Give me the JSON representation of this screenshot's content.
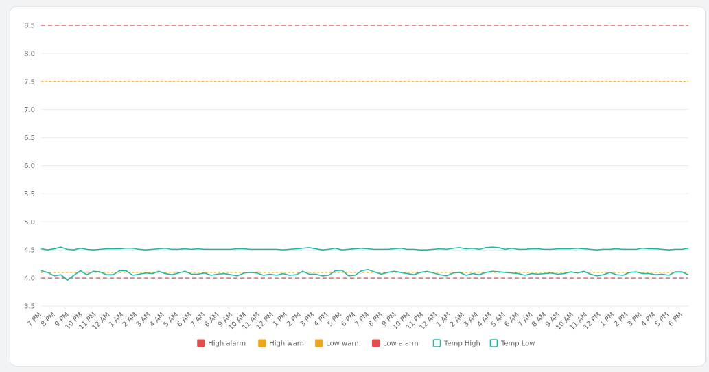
{
  "chart_data": {
    "type": "line",
    "ylim": [
      3.5,
      8.5
    ],
    "yticks": [
      "3.5",
      "4.0",
      "4.5",
      "5.0",
      "5.5",
      "6.0",
      "6.5",
      "7.0",
      "7.5",
      "8.0",
      "8.5"
    ],
    "x_labels": [
      "7 PM",
      "8 PM",
      "9 PM",
      "10 PM",
      "11 PM",
      "12 AM",
      "1 AM",
      "2 AM",
      "3 AM",
      "4 AM",
      "5 AM",
      "6 AM",
      "7 AM",
      "8 AM",
      "9 AM",
      "10 AM",
      "11 AM",
      "12 PM",
      "1 PM",
      "2 PM",
      "3 PM",
      "4 PM",
      "5 PM",
      "6 PM",
      "7 PM",
      "8 PM",
      "9 PM",
      "10 PM",
      "11 PM",
      "12 AM",
      "1 AM",
      "2 AM",
      "3 AM",
      "4 AM",
      "5 AM",
      "6 AM",
      "7 AM",
      "8 AM",
      "9 AM",
      "10 AM",
      "11 AM",
      "12 PM",
      "1 PM",
      "2 PM",
      "3 PM",
      "4 PM",
      "5 PM",
      "6 PM"
    ],
    "grid": true,
    "legend_position": "bottom",
    "thresholds": [
      {
        "name": "High alarm",
        "value": 8.5,
        "color": "#e94b4b",
        "dash": "long"
      },
      {
        "name": "High warn",
        "value": 7.5,
        "color": "#f0a516",
        "dash": "short"
      },
      {
        "name": "Low  warn",
        "value": 4.1,
        "color": "#f0a516",
        "dash": "short"
      },
      {
        "name": "Low  alarm",
        "value": 4.0,
        "color": "#e94b4b",
        "dash": "long"
      }
    ],
    "series": [
      {
        "name": "Temp High",
        "color": "#1fb8a6",
        "values": [
          4.52,
          4.5,
          4.52,
          4.55,
          4.51,
          4.5,
          4.53,
          4.51,
          4.5,
          4.51,
          4.52,
          4.52,
          4.52,
          4.53,
          4.53,
          4.51,
          4.5,
          4.51,
          4.52,
          4.53,
          4.51,
          4.51,
          4.52,
          4.51,
          4.52,
          4.51,
          4.51,
          4.51,
          4.51,
          4.51,
          4.52,
          4.52,
          4.51,
          4.51,
          4.51,
          4.51,
          4.51,
          4.5,
          4.51,
          4.52,
          4.53,
          4.54,
          4.52,
          4.5,
          4.51,
          4.53,
          4.5,
          4.51,
          4.52,
          4.53,
          4.52,
          4.51,
          4.51,
          4.51,
          4.52,
          4.53,
          4.51,
          4.51,
          4.5,
          4.5,
          4.51,
          4.52,
          4.51,
          4.53,
          4.54,
          4.52,
          4.53,
          4.51,
          4.54,
          4.55,
          4.54,
          4.51,
          4.53,
          4.51,
          4.51,
          4.52,
          4.52,
          4.51,
          4.51,
          4.52,
          4.52,
          4.52,
          4.53,
          4.52,
          4.51,
          4.5,
          4.51,
          4.51,
          4.52,
          4.51,
          4.51,
          4.51,
          4.53,
          4.52,
          4.52,
          4.51,
          4.5,
          4.51,
          4.51,
          4.53
        ]
      },
      {
        "name": "Temp Low",
        "color": "#1fb8a6",
        "values": [
          4.13,
          4.1,
          4.04,
          4.06,
          3.96,
          4.05,
          4.13,
          4.06,
          4.12,
          4.11,
          4.06,
          4.06,
          4.13,
          4.13,
          4.05,
          4.07,
          4.09,
          4.08,
          4.12,
          4.08,
          4.06,
          4.09,
          4.12,
          4.07,
          4.07,
          4.09,
          4.05,
          4.07,
          4.08,
          4.06,
          4.04,
          4.09,
          4.1,
          4.09,
          4.05,
          4.07,
          4.05,
          4.08,
          4.05,
          4.06,
          4.12,
          4.07,
          4.07,
          4.04,
          4.05,
          4.13,
          4.14,
          4.04,
          4.05,
          4.13,
          4.15,
          4.11,
          4.07,
          4.1,
          4.12,
          4.1,
          4.08,
          4.06,
          4.1,
          4.12,
          4.09,
          4.06,
          4.04,
          4.09,
          4.1,
          4.05,
          4.08,
          4.06,
          4.1,
          4.12,
          4.11,
          4.1,
          4.09,
          4.08,
          4.05,
          4.08,
          4.07,
          4.08,
          4.09,
          4.07,
          4.08,
          4.11,
          4.09,
          4.12,
          4.07,
          4.04,
          4.06,
          4.1,
          4.06,
          4.05,
          4.1,
          4.11,
          4.08,
          4.08,
          4.06,
          4.07,
          4.05,
          4.11,
          4.11,
          4.06
        ]
      }
    ],
    "legend": [
      {
        "label": "High alarm",
        "color": "#e94b4b",
        "style": "filled"
      },
      {
        "label": "High warn",
        "color": "#f0a516",
        "style": "filled"
      },
      {
        "label": "Low  warn",
        "color": "#f0a516",
        "style": "filled"
      },
      {
        "label": "Low  alarm",
        "color": "#e94b4b",
        "style": "filled"
      },
      {
        "label": "Temp High",
        "color": "#1fb8a6",
        "style": "outline"
      },
      {
        "label": "Temp Low",
        "color": "#1fb8a6",
        "style": "outline"
      }
    ]
  }
}
